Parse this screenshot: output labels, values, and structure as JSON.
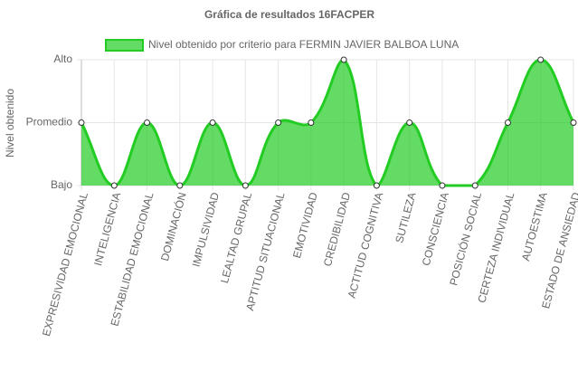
{
  "chart_data": {
    "type": "area",
    "title": "Gráfica de resultados 16FACPER",
    "y_label": "Nivel obtenido",
    "categories": [
      "EXPRESIVIDAD EMOCIONAL",
      "INTELIGENCIA",
      "ESTABILIDAD EMOCIONAL",
      "DOMINACIÓN",
      "IMPULSIVIDAD",
      "LEALTAD GRUPAL",
      "APTITUD SITUACIONAL",
      "EMOTIVIDAD",
      "CREDIBILIDAD",
      "ACTITUD COGNITIVA",
      "SUTILEZA",
      "CONSCIENCIA",
      "POSICIÓN SOCIAL",
      "CERTEZA INDIVIDUAL",
      "AUTOESTIMA",
      "ESTADO DE ANSIEDAD"
    ],
    "series": [
      {
        "name": "Nivel obtenido por criterio para FERMIN JAVIER BALBOA LUNA",
        "color": "#22cc22",
        "fill": "rgba(34,204,34,0.7)",
        "values": [
          2,
          1,
          2,
          1,
          2,
          1,
          2,
          2,
          3,
          1,
          2,
          1,
          1,
          2,
          3,
          2
        ]
      }
    ],
    "ylim": [
      1,
      3
    ],
    "yticks": [
      {
        "value": 1,
        "label": "Bajo"
      },
      {
        "value": 2,
        "label": "Promedio"
      },
      {
        "value": 3,
        "label": "Alto"
      }
    ],
    "grid": true,
    "legend": "top"
  }
}
